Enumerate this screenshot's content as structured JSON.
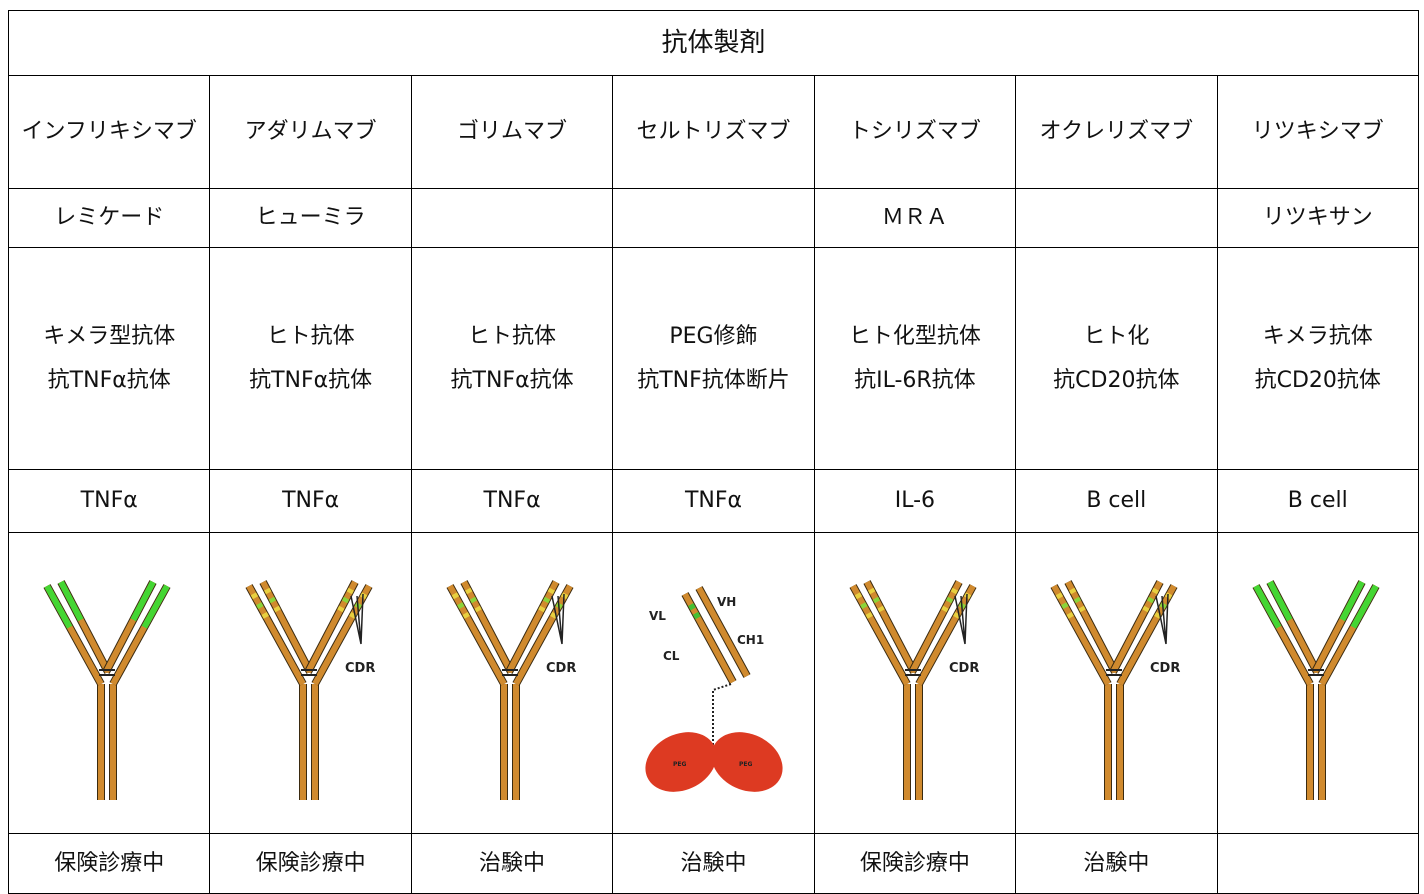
{
  "table": {
    "title": "抗体製剤",
    "rows": [
      [
        "インフリキシマブ",
        "アダリムマブ",
        "ゴリムマブ",
        "セルトリズマブ",
        "トシリズマブ",
        "オクレリズマブ",
        "リツキシマブ"
      ],
      [
        "レミケード",
        "ヒューミラ",
        null,
        null,
        "ＭＲＡ",
        null,
        "リツキサン"
      ],
      [
        [
          "キメラ型抗体",
          "抗TNFα抗体"
        ],
        [
          "ヒト抗体",
          "抗TNFα抗体"
        ],
        [
          "ヒト抗体",
          "抗TNFα抗体"
        ],
        [
          "PEG修飾",
          "抗TNF抗体断片"
        ],
        [
          "ヒト化型抗体",
          "抗IL-6R抗体"
        ],
        [
          "ヒト化",
          "抗CD20抗体"
        ],
        [
          "キメラ抗体",
          "抗CD20抗体"
        ]
      ],
      [
        "TNFα",
        "TNFα",
        "TNFα",
        "TNFα",
        "IL-6",
        "B cell",
        "B cell"
      ],
      [
        "保険診療中",
        "保険診療中",
        "治験中",
        "治験中",
        "保険診療中",
        "治験中",
        null
      ]
    ],
    "diagrams": [
      null,
      [
        "CDR"
      ],
      [
        "CDR"
      ],
      [
        "VL",
        "VH",
        "CH1",
        "CL",
        "PEG",
        "PEG"
      ],
      [
        "CDR"
      ],
      [
        "CDR"
      ],
      null
    ]
  }
}
